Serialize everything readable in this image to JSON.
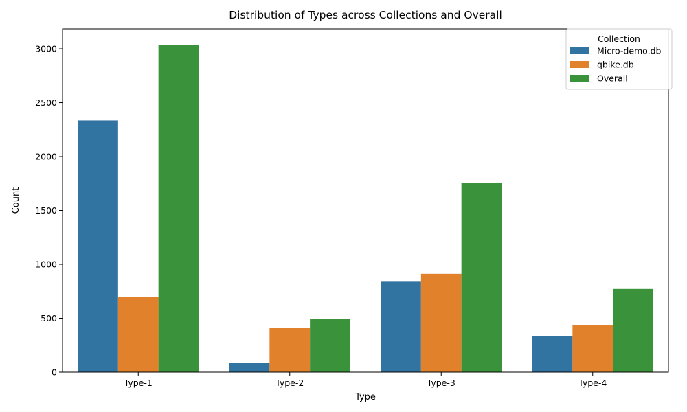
{
  "chart_data": {
    "type": "bar",
    "title": "Distribution of Types across Collections and Overall",
    "xlabel": "Type",
    "ylabel": "Count",
    "categories": [
      "Type-1",
      "Type-2",
      "Type-3",
      "Type-4"
    ],
    "ylim": [
      0,
      3185
    ],
    "yticks": [
      0,
      500,
      1000,
      1500,
      2000,
      2500,
      3000
    ],
    "legend": {
      "title": "Collection",
      "placement": "top-right"
    },
    "series": [
      {
        "name": "Micro-demo.db",
        "color": "#3274a1",
        "values": [
          2335,
          85,
          845,
          335
        ]
      },
      {
        "name": "qbike.db",
        "color": "#e1812c",
        "values": [
          700,
          408,
          912,
          435
        ]
      },
      {
        "name": "Overall",
        "color": "#3a923a",
        "values": [
          3035,
          495,
          1758,
          772
        ]
      }
    ]
  }
}
